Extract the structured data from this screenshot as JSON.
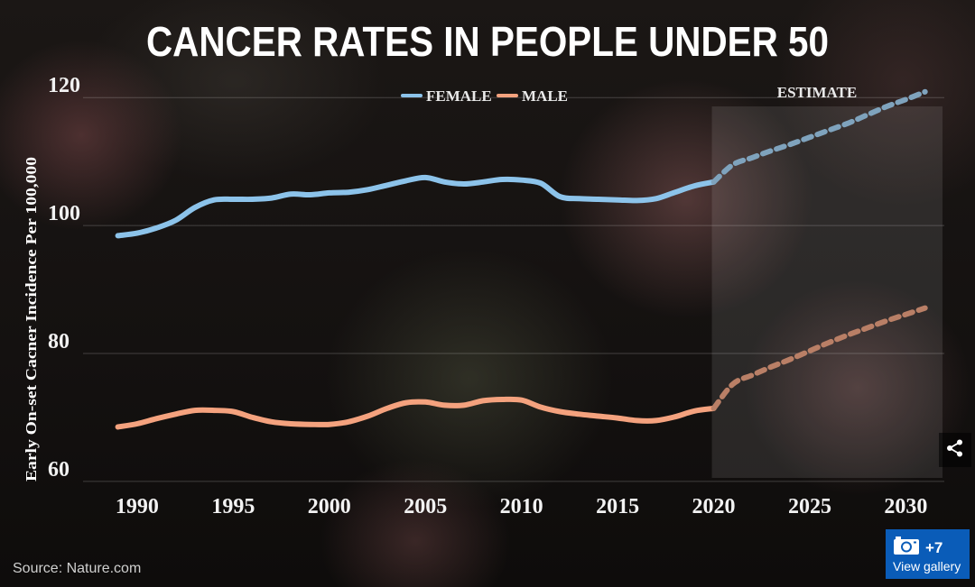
{
  "chart_data": {
    "type": "line",
    "title": "CANCER RATES IN PEOPLE UNDER 50",
    "ylabel": "Early On-set Cacner Incidence Per 100,000",
    "xlabel": "",
    "x_ticks": [
      "1990",
      "1995",
      "2000",
      "2005",
      "2010",
      "2015",
      "2020",
      "2025",
      "2030"
    ],
    "y_ticks": [
      "60",
      "80",
      "100",
      "120"
    ],
    "xlim": [
      1988.5,
      2032
    ],
    "ylim": [
      58,
      122
    ],
    "grid": "horizontal",
    "legend": "top-center",
    "estimate_label": "ESTIMATE",
    "estimate_range": [
      2020,
      2032
    ],
    "series": [
      {
        "name": "FEMALE",
        "color": "#8cc3ea",
        "estimate_color": "#7fa3bd",
        "x": [
          1989,
          1990,
          1991,
          1992,
          1993,
          1994,
          1995,
          1996,
          1997,
          1998,
          1999,
          2000,
          2001,
          2002,
          2003,
          2004,
          2005,
          2006,
          2007,
          2008,
          2009,
          2010,
          2011,
          2012,
          2013,
          2014,
          2015,
          2016,
          2017,
          2018,
          2019,
          2020
        ],
        "values": [
          98.4,
          98.8,
          99.6,
          100.8,
          102.8,
          104.0,
          104.1,
          104.1,
          104.3,
          104.9,
          104.8,
          105.1,
          105.2,
          105.6,
          106.3,
          107.0,
          107.5,
          106.8,
          106.5,
          106.8,
          107.2,
          107.1,
          106.6,
          104.5,
          104.2,
          104.1,
          104.0,
          103.9,
          104.2,
          105.2,
          106.2,
          106.8
        ],
        "estimate_x": [
          2020,
          2021,
          2022,
          2023,
          2024,
          2025,
          2026,
          2027,
          2028,
          2029,
          2030,
          2031
        ],
        "estimate_values": [
          106.8,
          109.5,
          110.6,
          111.7,
          112.7,
          113.8,
          114.9,
          116.0,
          117.3,
          118.6,
          119.7,
          120.9
        ]
      },
      {
        "name": "MALE",
        "color": "#f4a27e",
        "estimate_color": "#b97f66",
        "x": [
          1989,
          1990,
          1991,
          1992,
          1993,
          1994,
          1995,
          1996,
          1997,
          1998,
          1999,
          2000,
          2001,
          2002,
          2003,
          2004,
          2005,
          2006,
          2007,
          2008,
          2009,
          2010,
          2011,
          2012,
          2013,
          2014,
          2015,
          2016,
          2017,
          2018,
          2019,
          2020
        ],
        "values": [
          68.5,
          69.0,
          69.8,
          70.5,
          71.1,
          71.1,
          70.9,
          70.0,
          69.3,
          69.0,
          68.9,
          68.9,
          69.3,
          70.2,
          71.4,
          72.3,
          72.4,
          71.9,
          71.9,
          72.6,
          72.8,
          72.7,
          71.6,
          70.9,
          70.5,
          70.2,
          69.9,
          69.5,
          69.5,
          70.1,
          71.0,
          71.4
        ],
        "estimate_x": [
          2020,
          2021,
          2022,
          2023,
          2024,
          2025,
          2026,
          2027,
          2028,
          2029,
          2030,
          2031
        ],
        "estimate_values": [
          71.4,
          75.2,
          76.6,
          77.9,
          79.1,
          80.4,
          81.7,
          82.9,
          84.0,
          85.1,
          86.1,
          87.1
        ]
      }
    ]
  },
  "source": "Source: Nature.com",
  "gallery": {
    "count": "+7",
    "label": "View gallery"
  },
  "icons": {
    "share": "share-icon",
    "camera": "camera-icon"
  }
}
